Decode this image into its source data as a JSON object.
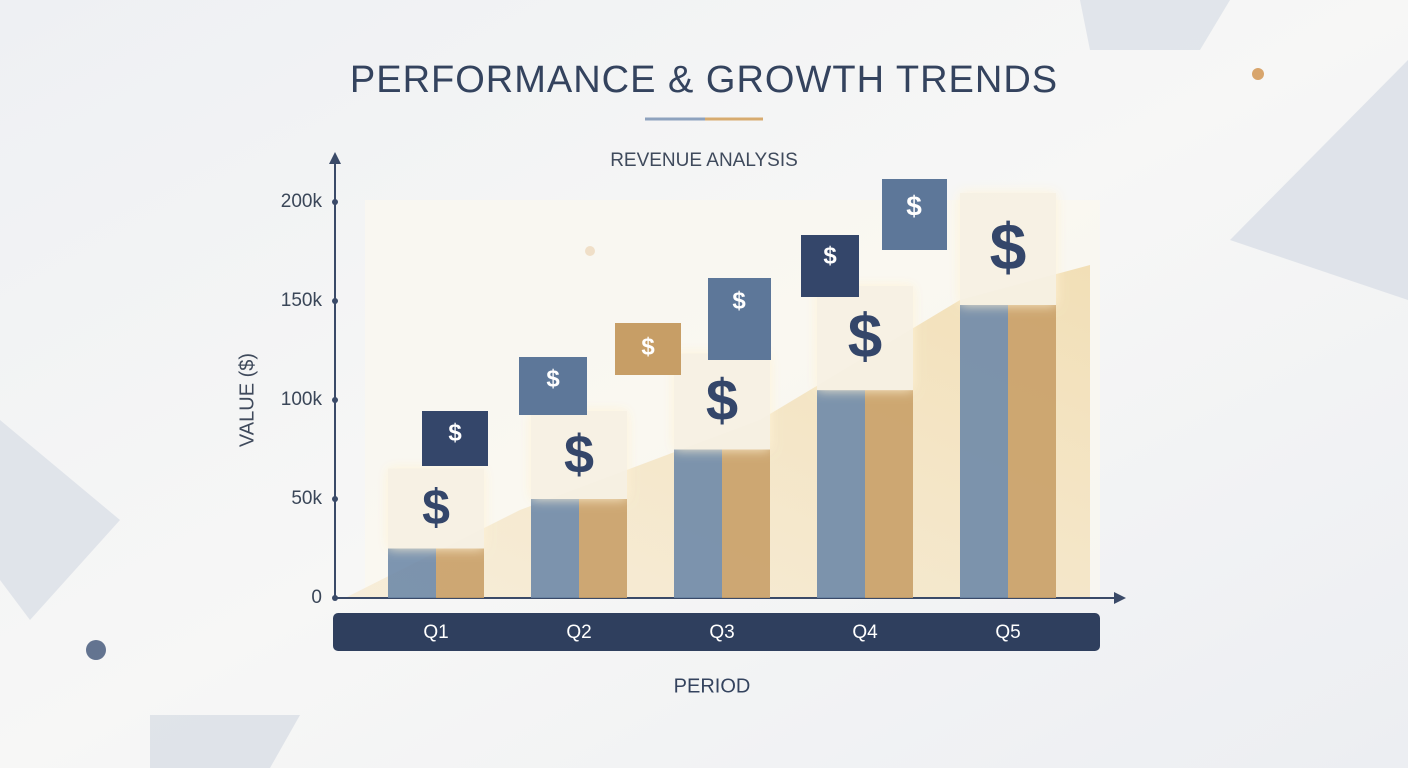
{
  "chart_data": {
    "type": "bar",
    "title": "PERFORMANCE & GROWTH TRENDS",
    "subtitle": "REVENUE ANALYSIS",
    "y_label": "VALUE ($)",
    "x_label": "PERIOD",
    "icon_symbol": "$",
    "categories": [
      "Q1",
      "Q2",
      "Q3",
      "Q4",
      "Q5"
    ],
    "series": [
      {
        "color": "#6f8aa8",
        "values": [
          25000,
          50000,
          75000,
          105000,
          148000
        ]
      },
      {
        "color": "#c9a068",
        "values": [
          25000,
          50000,
          75000,
          105000,
          148000
        ]
      }
    ],
    "ylim": [
      0,
      200000
    ],
    "yticks": [
      0,
      {
        "value": 50000,
        "label": "50k"
      },
      {
        "value": 100000,
        "label": "100k"
      },
      {
        "value": 150000,
        "label": "150k"
      },
      {
        "value": 200000,
        "label": "200k"
      }
    ],
    "grid": false
  }
}
